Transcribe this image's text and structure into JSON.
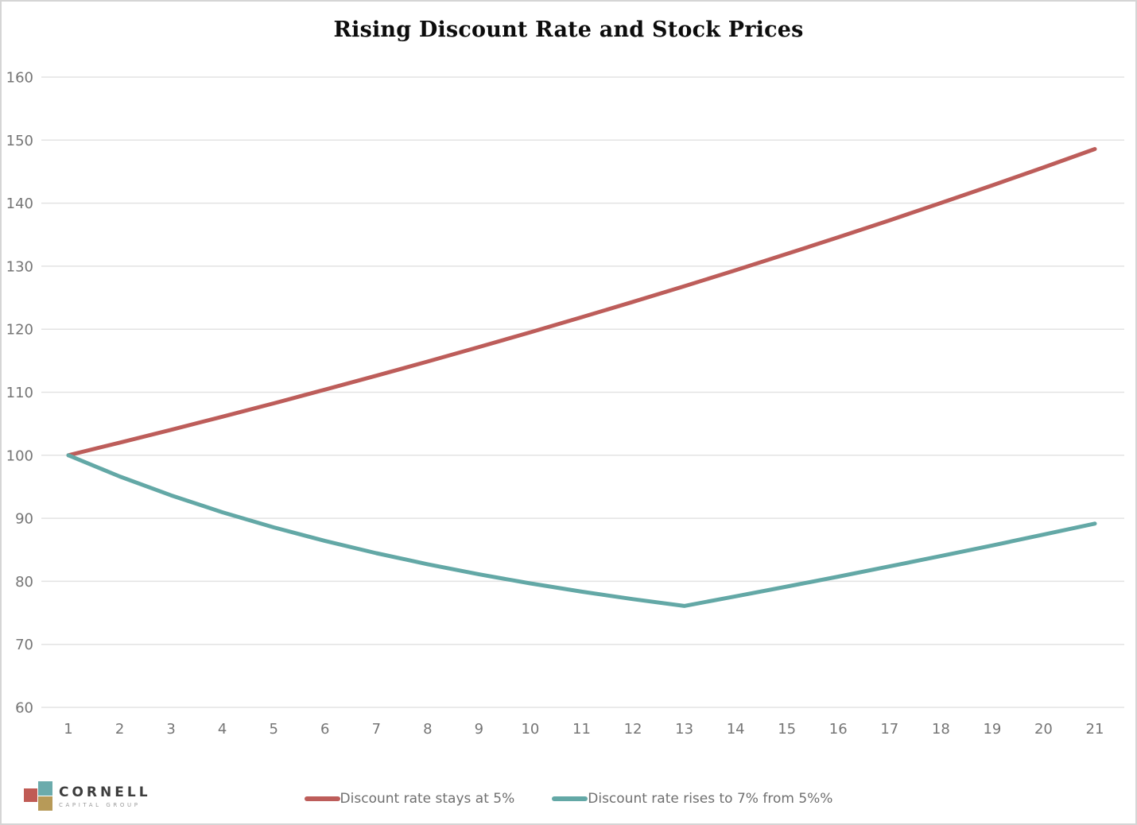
{
  "title": "Rising Discount Rate and Stock Prices",
  "chart_data": {
    "type": "line",
    "title": "Rising Discount Rate and Stock Prices",
    "xlabel": "",
    "ylabel": "",
    "x": [
      1,
      2,
      3,
      4,
      5,
      6,
      7,
      8,
      9,
      10,
      11,
      12,
      13,
      14,
      15,
      16,
      17,
      18,
      19,
      20,
      21
    ],
    "series": [
      {
        "name": "Discount rate stays at 5%",
        "color": "#bd5d5a",
        "values": [
          100,
          102,
          104.04,
          106.12,
          108.24,
          110.41,
          112.62,
          114.87,
          117.17,
          119.51,
          121.9,
          124.34,
          126.82,
          129.36,
          131.95,
          134.59,
          137.28,
          140.02,
          142.82,
          145.68,
          148.59
        ]
      },
      {
        "name": "Discount rate rises to 7% from 5%%",
        "color": "#63a8a6",
        "values": [
          100,
          96.63,
          93.64,
          90.96,
          88.56,
          86.4,
          84.46,
          82.71,
          81.11,
          79.67,
          78.36,
          77.17,
          76.09,
          77.62,
          79.17,
          80.75,
          82.37,
          84.01,
          85.69,
          87.41,
          89.15
        ]
      }
    ],
    "ylim": [
      60,
      160
    ],
    "yticks": [
      60,
      70,
      80,
      90,
      100,
      110,
      120,
      130,
      140,
      150,
      160
    ],
    "xticks": [
      1,
      2,
      3,
      4,
      5,
      6,
      7,
      8,
      9,
      10,
      11,
      12,
      13,
      14,
      15,
      16,
      17,
      18,
      19,
      20,
      21
    ],
    "grid": "horizontal-only",
    "legend_position": "bottom-center"
  },
  "colors": {
    "gridline": "#e3e3e3",
    "tick_text": "#757575",
    "legend_text": "#6f6f6f",
    "title_text": "#0c0c0c",
    "border": "#d5d5d5",
    "background": "#ffffff"
  },
  "logo": {
    "name": "CORNELL",
    "subtitle": "CAPITAL GROUP",
    "square_teal": "#6babac",
    "square_red": "#c05b55",
    "square_tan": "#b79a58"
  }
}
